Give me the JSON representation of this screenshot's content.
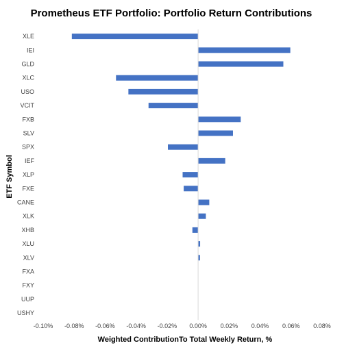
{
  "chart_data": {
    "type": "bar",
    "orientation": "horizontal",
    "title": "Prometheus ETF Portfolio: Portfolio Return Contributions",
    "xlabel": "Weighted ContributionTo Total Weekly Return, %",
    "ylabel": "ETF Symbol",
    "xlim": [
      -0.1,
      0.08
    ],
    "x_ticks": [
      "-0.10%",
      "-0.08%",
      "-0.06%",
      "-0.04%",
      "-0.02%",
      "0.00%",
      "0.02%",
      "0.04%",
      "0.06%",
      "0.08%"
    ],
    "x_tick_values": [
      -0.1,
      -0.08,
      -0.06,
      -0.04,
      -0.02,
      0.0,
      0.02,
      0.04,
      0.06,
      0.08
    ],
    "categories": [
      "XLE",
      "IEI",
      "GLD",
      "XLC",
      "USO",
      "VCIT",
      "FXB",
      "SLV",
      "SPX",
      "IEF",
      "XLP",
      "FXE",
      "CANE",
      "XLK",
      "XHB",
      "XLU",
      "XLV",
      "FXA",
      "FXY",
      "UUP",
      "USHY"
    ],
    "series": [
      {
        "values": [
          -0.0815,
          0.0595,
          0.055,
          -0.053,
          -0.045,
          -0.032,
          0.0275,
          0.0225,
          -0.0195,
          0.0175,
          -0.01,
          -0.0093,
          0.0072,
          0.005,
          -0.0037,
          0.0013,
          0.0012,
          0.0,
          0.0,
          0.0,
          0.0
        ]
      }
    ],
    "bar_color": "#4472C4",
    "grid": false,
    "legend": "none"
  }
}
